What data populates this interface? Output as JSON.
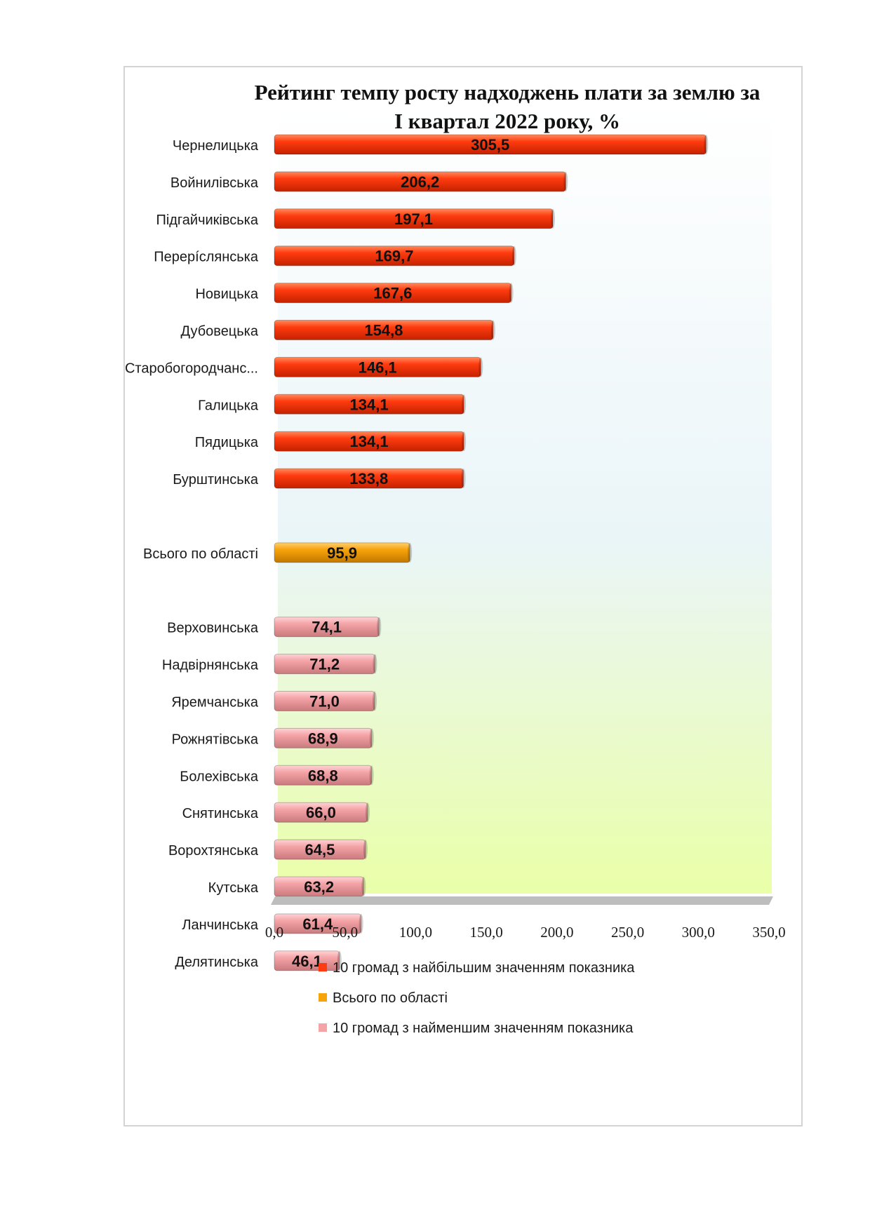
{
  "chart_data": {
    "type": "bar",
    "orientation": "horizontal",
    "title": "Рейтинг темпу росту надходжень плати за землю за І квартал 2022 року, %",
    "title_lines": [
      "Рейтинг темпу росту надходжень плати за землю за",
      "І квартал 2022 року, %"
    ],
    "xlim": [
      0,
      350
    ],
    "x_ticks": [
      "0,0",
      "50,0",
      "100,0",
      "150,0",
      "200,0",
      "250,0",
      "300,0",
      "350,0"
    ],
    "grid": false,
    "legend_position": "bottom",
    "colors": {
      "top": "#ff3b0f",
      "total": "#f7a30a",
      "bottom": "#f4a3a6",
      "plot_bg_top": "#ffffff",
      "plot_bg_mid": "#eaf5f8",
      "plot_bg_bottom": "#eaffa8"
    },
    "categories": [
      {
        "label": "Чернелицька",
        "value": 305.5,
        "value_label": "305,5",
        "group": "top"
      },
      {
        "label": "Войнилівська",
        "value": 206.2,
        "value_label": "206,2",
        "group": "top"
      },
      {
        "label": "Підгайчиківська",
        "value": 197.1,
        "value_label": "197,1",
        "group": "top"
      },
      {
        "label": "Перерíслянська",
        "value": 169.7,
        "value_label": "169,7",
        "group": "top"
      },
      {
        "label": "Новицька",
        "value": 167.6,
        "value_label": "167,6",
        "group": "top"
      },
      {
        "label": "Дубовецька",
        "value": 154.8,
        "value_label": "154,8",
        "group": "top"
      },
      {
        "label": "Старобогородчанс...",
        "value": 146.1,
        "value_label": "146,1",
        "group": "top"
      },
      {
        "label": "Галицька",
        "value": 134.1,
        "value_label": "134,1",
        "group": "top"
      },
      {
        "label": "Пядицька",
        "value": 134.1,
        "value_label": "134,1",
        "group": "top"
      },
      {
        "label": "Бурштинська",
        "value": 133.8,
        "value_label": "133,8",
        "group": "top"
      },
      {
        "label": "",
        "value": null,
        "value_label": "",
        "group": "gap"
      },
      {
        "label": "Всього по області",
        "value": 95.9,
        "value_label": "95,9",
        "group": "total"
      },
      {
        "label": "",
        "value": null,
        "value_label": "",
        "group": "gap"
      },
      {
        "label": "Верховинська",
        "value": 74.1,
        "value_label": "74,1",
        "group": "bottom"
      },
      {
        "label": "Надвірнянська",
        "value": 71.2,
        "value_label": "71,2",
        "group": "bottom"
      },
      {
        "label": "Яремчанська",
        "value": 71.0,
        "value_label": "71,0",
        "group": "bottom"
      },
      {
        "label": "Рожнятівська",
        "value": 68.9,
        "value_label": "68,9",
        "group": "bottom"
      },
      {
        "label": "Болехівська",
        "value": 68.8,
        "value_label": "68,8",
        "group": "bottom"
      },
      {
        "label": "Снятинська",
        "value": 66.0,
        "value_label": "66,0",
        "group": "bottom"
      },
      {
        "label": "Ворохтянська",
        "value": 64.5,
        "value_label": "64,5",
        "group": "bottom"
      },
      {
        "label": "Кутська",
        "value": 63.2,
        "value_label": "63,2",
        "group": "bottom"
      },
      {
        "label": "Ланчинська",
        "value": 61.4,
        "value_label": "61,4",
        "group": "bottom"
      },
      {
        "label": "Делятинська",
        "value": 46.1,
        "value_label": "46,1",
        "group": "bottom"
      }
    ],
    "series": [
      {
        "key": "top",
        "name": "10 громад з найбільшим значенням показника"
      },
      {
        "key": "total",
        "name": "Всього по області"
      },
      {
        "key": "bottom",
        "name": "10 громад з найменшим значенням показника"
      }
    ]
  }
}
